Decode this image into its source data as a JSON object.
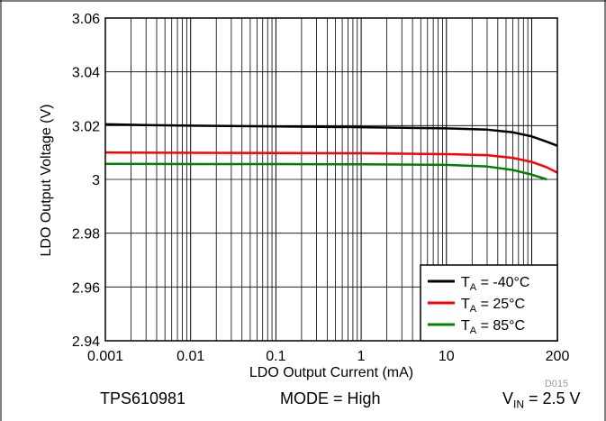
{
  "chart_data": {
    "type": "line",
    "title": "",
    "xlabel": "LDO Output Current (mA)",
    "ylabel": "LDO Output Voltage (V)",
    "xscale": "log",
    "xlim": [
      0.001,
      200
    ],
    "ylim": [
      2.94,
      3.06
    ],
    "x_ticks": [
      0.001,
      0.01,
      0.1,
      1,
      10,
      200
    ],
    "x_tick_labels": [
      "0.001",
      "0.01",
      "0.1",
      "1",
      "10",
      "200"
    ],
    "y_ticks": [
      2.94,
      2.96,
      2.98,
      3.0,
      3.02,
      3.04,
      3.06
    ],
    "y_tick_labels": [
      "2.94",
      "2.96",
      "2.98",
      "3",
      "3.02",
      "3.04",
      "3.06"
    ],
    "grid": true,
    "legend_position": "bottom-right",
    "figure_id": "D015",
    "series": [
      {
        "name": "T_A = -40°C",
        "color": "#000000",
        "x": [
          0.001,
          0.003,
          0.01,
          0.1,
          1,
          10,
          30,
          60,
          100,
          150,
          200
        ],
        "y": [
          3.0205,
          3.0202,
          3.02,
          3.0197,
          3.0194,
          3.019,
          3.0185,
          3.0175,
          3.016,
          3.014,
          3.0125
        ]
      },
      {
        "name": "T_A = 25°C",
        "color": "#ff0000",
        "x": [
          0.001,
          0.01,
          0.1,
          1,
          10,
          30,
          60,
          100,
          150,
          200
        ],
        "y": [
          3.01,
          3.0099,
          3.0098,
          3.0097,
          3.0094,
          3.009,
          3.008,
          3.0065,
          3.0045,
          3.0025
        ]
      },
      {
        "name": "T_A = 85°C",
        "color": "#008000",
        "x": [
          0.001,
          0.01,
          0.1,
          1,
          10,
          30,
          60,
          100,
          150
        ],
        "y": [
          3.0058,
          3.0057,
          3.0057,
          3.0056,
          3.0054,
          3.0048,
          3.0035,
          3.0018,
          3.0
        ]
      }
    ]
  },
  "legend": {
    "items": [
      {
        "prefix": "T",
        "sub": "A",
        "rest": " = -40°C",
        "color": "#000000"
      },
      {
        "prefix": "T",
        "sub": "A",
        "rest": " = 25°C",
        "color": "#ff0000"
      },
      {
        "prefix": "T",
        "sub": "A",
        "rest": " = 85°C",
        "color": "#008000"
      }
    ]
  },
  "footer": {
    "device": "TPS610981",
    "mode": "MODE = High",
    "vin_prefix": "V",
    "vin_sub": "IN",
    "vin_rest": " = 2.5 V"
  }
}
